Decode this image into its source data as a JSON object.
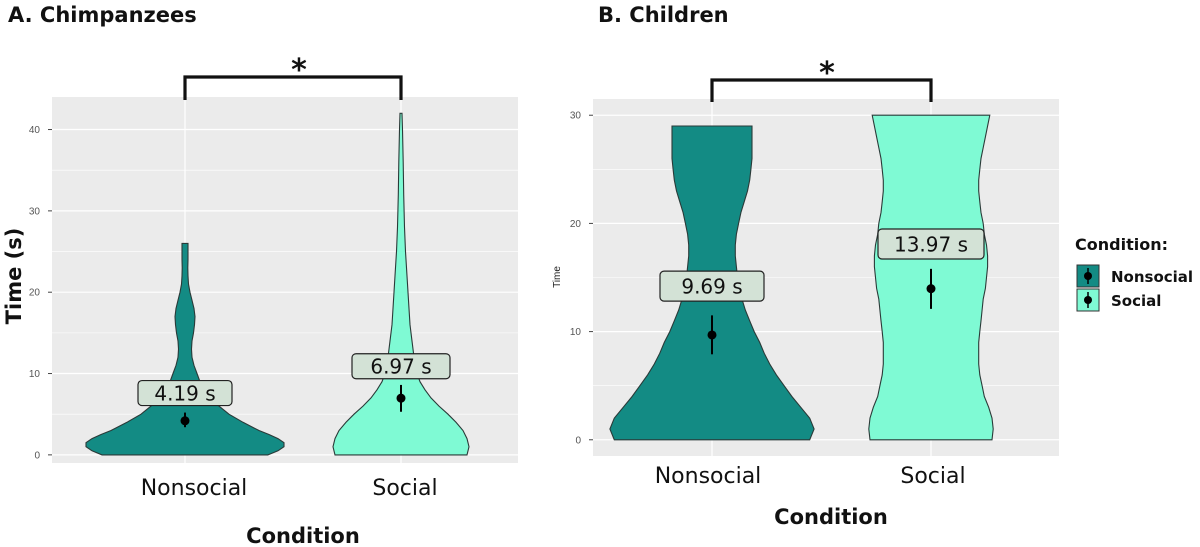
{
  "colors": {
    "nonsocial": "#138b84",
    "social": "#7ffad4",
    "panel_bg": "#ebebeb",
    "grid": "#ffffff",
    "label_bg": "#d3e2d6"
  },
  "chart_data": [
    {
      "type": "violin",
      "title": "A. Chimpanzees",
      "xlabel": "Condition",
      "ylabel": "Time (s)",
      "ylim": [
        -1,
        44
      ],
      "yticks": [
        "0",
        "10",
        "20",
        "30",
        "40"
      ],
      "categories": [
        "Nonsocial",
        "Social"
      ],
      "series": [
        {
          "name": "Nonsocial",
          "mean": 4.19,
          "ci": [
            3.4,
            5.2
          ],
          "label": "4.19 s",
          "violin_max": 26,
          "profile": [
            [
              0,
              0.83
            ],
            [
              0.5,
              0.93
            ],
            [
              1,
              0.99
            ],
            [
              1.5,
              0.99
            ],
            [
              2,
              0.93
            ],
            [
              2.5,
              0.84
            ],
            [
              3,
              0.74
            ],
            [
              4,
              0.58
            ],
            [
              5,
              0.44
            ],
            [
              6,
              0.34
            ],
            [
              7,
              0.26
            ],
            [
              8,
              0.2
            ],
            [
              9,
              0.15
            ],
            [
              10,
              0.12
            ],
            [
              11,
              0.09
            ],
            [
              12,
              0.07
            ],
            [
              13,
              0.065
            ],
            [
              14,
              0.07
            ],
            [
              15,
              0.085
            ],
            [
              16,
              0.095
            ],
            [
              17,
              0.1
            ],
            [
              18,
              0.09
            ],
            [
              19,
              0.07
            ],
            [
              20,
              0.05
            ],
            [
              21,
              0.035
            ],
            [
              22,
              0.03
            ],
            [
              23,
              0.028
            ],
            [
              24,
              0.03
            ],
            [
              25,
              0.03
            ],
            [
              26,
              0.03
            ]
          ]
        },
        {
          "name": "Social",
          "mean": 6.97,
          "ci": [
            5.3,
            8.6
          ],
          "label": "6.97 s",
          "violin_max": 42,
          "profile": [
            [
              0,
              0.66
            ],
            [
              1,
              0.68
            ],
            [
              2,
              0.66
            ],
            [
              3,
              0.62
            ],
            [
              4,
              0.55
            ],
            [
              5,
              0.47
            ],
            [
              6,
              0.38
            ],
            [
              7,
              0.3
            ],
            [
              8,
              0.24
            ],
            [
              9,
              0.19
            ],
            [
              10,
              0.16
            ],
            [
              11,
              0.14
            ],
            [
              12,
              0.13
            ],
            [
              13,
              0.12
            ],
            [
              14,
              0.11
            ],
            [
              16,
              0.09
            ],
            [
              18,
              0.08
            ],
            [
              20,
              0.07
            ],
            [
              22,
              0.06
            ],
            [
              25,
              0.045
            ],
            [
              28,
              0.035
            ],
            [
              32,
              0.027
            ],
            [
              36,
              0.022
            ],
            [
              40,
              0.015
            ],
            [
              42,
              0.01
            ]
          ]
        }
      ],
      "significance": "*"
    },
    {
      "type": "violin",
      "title": "B. Children",
      "xlabel": "Condition",
      "ylabel": "Time",
      "ylim": [
        -1.5,
        31.5
      ],
      "yticks": [
        "0",
        "10",
        "20",
        "30"
      ],
      "categories": [
        "Nonsocial",
        "Social"
      ],
      "series": [
        {
          "name": "Nonsocial",
          "mean": 9.69,
          "ci": [
            7.9,
            11.5
          ],
          "label": "9.69 s",
          "violin_max": 29,
          "profile": [
            [
              0,
              0.88
            ],
            [
              1,
              0.92
            ],
            [
              2,
              0.88
            ],
            [
              3,
              0.8
            ],
            [
              4,
              0.72
            ],
            [
              5,
              0.65
            ],
            [
              6,
              0.58
            ],
            [
              7,
              0.52
            ],
            [
              8,
              0.47
            ],
            [
              9,
              0.43
            ],
            [
              10,
              0.38
            ],
            [
              11,
              0.34
            ],
            [
              12,
              0.3
            ],
            [
              13,
              0.27
            ],
            [
              14,
              0.25
            ],
            [
              15,
              0.23
            ],
            [
              16,
              0.22
            ],
            [
              17,
              0.21
            ],
            [
              18,
              0.21
            ],
            [
              19,
              0.22
            ],
            [
              20,
              0.24
            ],
            [
              21,
              0.26
            ],
            [
              22,
              0.29
            ],
            [
              23,
              0.32
            ],
            [
              24,
              0.34
            ],
            [
              25,
              0.35
            ],
            [
              26,
              0.36
            ],
            [
              27,
              0.36
            ],
            [
              28,
              0.36
            ],
            [
              29,
              0.36
            ]
          ]
        },
        {
          "name": "Social",
          "mean": 13.97,
          "ci": [
            12.1,
            15.8
          ],
          "label": "13.97 s",
          "violin_max": 30,
          "profile": [
            [
              0,
              0.55
            ],
            [
              1,
              0.56
            ],
            [
              2,
              0.55
            ],
            [
              3,
              0.52
            ],
            [
              4,
              0.48
            ],
            [
              5,
              0.46
            ],
            [
              6,
              0.44
            ],
            [
              7,
              0.43
            ],
            [
              8,
              0.43
            ],
            [
              9,
              0.43
            ],
            [
              10,
              0.44
            ],
            [
              11,
              0.45
            ],
            [
              12,
              0.46
            ],
            [
              13,
              0.47
            ],
            [
              14,
              0.49
            ],
            [
              15,
              0.5
            ],
            [
              16,
              0.51
            ],
            [
              17,
              0.51
            ],
            [
              18,
              0.5
            ],
            [
              19,
              0.48
            ],
            [
              20,
              0.47
            ],
            [
              21,
              0.45
            ],
            [
              22,
              0.44
            ],
            [
              23,
              0.43
            ],
            [
              24,
              0.43
            ],
            [
              25,
              0.44
            ],
            [
              26,
              0.45
            ],
            [
              27,
              0.47
            ],
            [
              28,
              0.49
            ],
            [
              29,
              0.51
            ],
            [
              30,
              0.53
            ]
          ]
        }
      ],
      "significance": "*"
    }
  ],
  "legend": {
    "title": "Condition:",
    "items": [
      {
        "label": "Nonsocial"
      },
      {
        "label": "Social"
      }
    ]
  }
}
